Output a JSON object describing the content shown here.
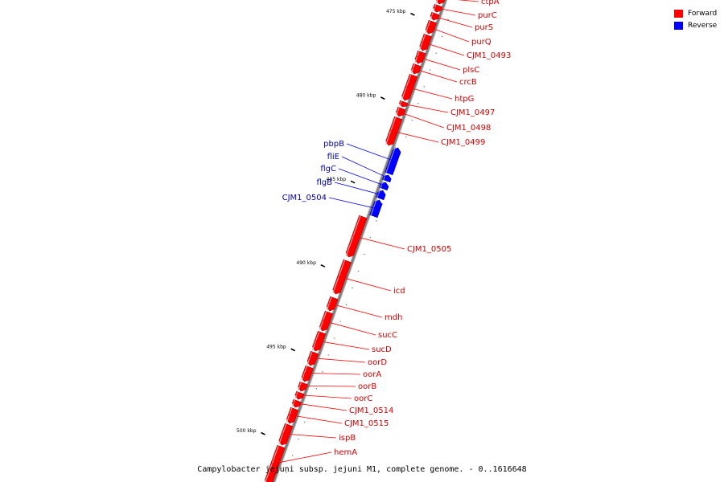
{
  "legend": {
    "items": [
      {
        "label": "Forward",
        "color": "#ff0000"
      },
      {
        "label": "Reverse",
        "color": "#0000ff"
      }
    ]
  },
  "caption": "Campylobacter jejuni subsp. jejuni M1, complete genome. - 0..1616648",
  "colors": {
    "forward": "#ff0000",
    "reverse": "#0000ff",
    "backbone": "#808080",
    "tick": "#000000"
  },
  "ticks": [
    {
      "kbp": 475,
      "label": "475 kbp"
    },
    {
      "kbp": 480,
      "label": "480 kbp"
    },
    {
      "kbp": 485,
      "label": "485 kbp"
    },
    {
      "kbp": 490,
      "label": "490 kbp"
    },
    {
      "kbp": 495,
      "label": "495 kbp"
    },
    {
      "kbp": 500,
      "label": "500 kbp"
    }
  ],
  "genes": [
    {
      "name": "ctpA",
      "strand": "forward"
    },
    {
      "name": "purC",
      "strand": "forward"
    },
    {
      "name": "purS",
      "strand": "forward"
    },
    {
      "name": "purQ",
      "strand": "forward"
    },
    {
      "name": "CJM1_0493",
      "strand": "forward"
    },
    {
      "name": "plsC",
      "strand": "forward"
    },
    {
      "name": "crcB",
      "strand": "forward"
    },
    {
      "name": "htpG",
      "strand": "forward"
    },
    {
      "name": "CJM1_0497",
      "strand": "forward"
    },
    {
      "name": "CJM1_0498",
      "strand": "forward"
    },
    {
      "name": "CJM1_0499",
      "strand": "forward"
    },
    {
      "name": "pbpB",
      "strand": "reverse"
    },
    {
      "name": "fliE",
      "strand": "reverse"
    },
    {
      "name": "flgC",
      "strand": "reverse"
    },
    {
      "name": "flgB",
      "strand": "reverse"
    },
    {
      "name": "CJM1_0504",
      "strand": "reverse"
    },
    {
      "name": "CJM1_0505",
      "strand": "forward"
    },
    {
      "name": "icd",
      "strand": "forward"
    },
    {
      "name": "mdh",
      "strand": "forward"
    },
    {
      "name": "sucC",
      "strand": "forward"
    },
    {
      "name": "sucD",
      "strand": "forward"
    },
    {
      "name": "oorD",
      "strand": "forward"
    },
    {
      "name": "oorA",
      "strand": "forward"
    },
    {
      "name": "oorB",
      "strand": "forward"
    },
    {
      "name": "oorC",
      "strand": "forward"
    },
    {
      "name": "CJM1_0514",
      "strand": "forward"
    },
    {
      "name": "CJM1_0515",
      "strand": "forward"
    },
    {
      "name": "ispB",
      "strand": "forward"
    },
    {
      "name": "hemA",
      "strand": "forward"
    }
  ]
}
